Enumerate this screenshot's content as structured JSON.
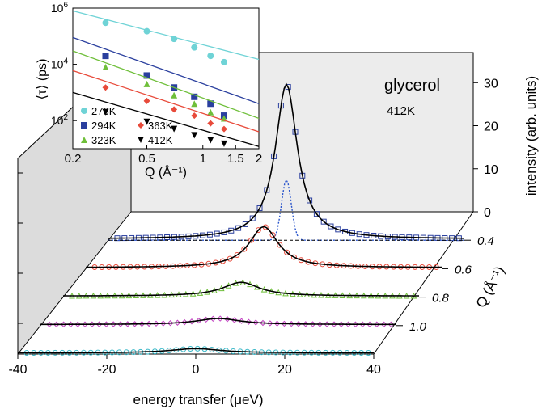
{
  "chart_data": [
    {
      "type": "line",
      "title": "glycerol",
      "subtitle": "412K",
      "xlabel": "energy transfer (μeV)",
      "ylabel": "intensity (arb. units)",
      "zlabel": "Q (Å⁻¹)",
      "xlim": [
        -40,
        40
      ],
      "ylim": [
        0,
        37
      ],
      "x_ticks": [
        "-40",
        "-20",
        "0",
        "20",
        "40"
      ],
      "y_ticks": [
        "0",
        "10",
        "20",
        "30"
      ],
      "z_ticks": [
        "0.4",
        "0.6",
        "0.8",
        "1.0"
      ],
      "series": [
        {
          "Q": 0.4,
          "color": "#2a3f9e",
          "marker": "square",
          "peak": 36,
          "width": 3.0,
          "resolution_peak": 14
        },
        {
          "Q": 0.6,
          "color": "#e84a3a",
          "marker": "circle",
          "peak": 9.5,
          "width": 4.0
        },
        {
          "Q": 0.8,
          "color": "#6fbf3a",
          "marker": "triangle",
          "peak": 3.2,
          "width": 5.0
        },
        {
          "Q": 1.0,
          "color": "#c243c2",
          "marker": "diamond",
          "peak": 1.4,
          "width": 6.0
        },
        {
          "Q": 1.2,
          "color": "#3ab8c8",
          "marker": "circle",
          "peak": 1.0,
          "width": 7.0
        }
      ]
    },
    {
      "type": "scatter",
      "xlabel": "Q (Å⁻¹)",
      "ylabel": "⟨τ⟩ (ps)",
      "xscale": "log",
      "yscale": "log",
      "xlim": [
        0.2,
        2
      ],
      "ylim": [
        10,
        1000000
      ],
      "x_ticks": [
        "0.2",
        "0.5",
        "1",
        "1.5",
        "2"
      ],
      "legend_position": "bottom-left",
      "series": [
        {
          "name": "273K",
          "color": "#6fd3d6",
          "marker": "circle",
          "x": [
            0.3,
            0.5,
            0.7,
            0.9,
            1.1,
            1.3
          ],
          "y": [
            300000,
            150000,
            80000,
            40000,
            20000,
            12000
          ],
          "fit": [
            [
              0.2,
              800000
            ],
            [
              2,
              15000
            ]
          ]
        },
        {
          "name": "294K",
          "color": "#2a3f9e",
          "marker": "square",
          "x": [
            0.3,
            0.5,
            0.7,
            0.9,
            1.1,
            1.3
          ],
          "y": [
            20000,
            4000,
            1500,
            700,
            400,
            150
          ],
          "fit": [
            [
              0.2,
              90000
            ],
            [
              2,
              400
            ]
          ]
        },
        {
          "name": "323K",
          "color": "#6fbf3a",
          "marker": "triangle",
          "x": [
            0.3,
            0.5,
            0.7,
            0.9,
            1.1,
            1.3
          ],
          "y": [
            8000,
            2000,
            800,
            400,
            200,
            120
          ],
          "fit": [
            [
              0.2,
              30000
            ],
            [
              2,
              120
            ]
          ]
        },
        {
          "name": "363K",
          "color": "#e84a3a",
          "marker": "diamond",
          "x": [
            0.3,
            0.5,
            0.7,
            0.9,
            1.1,
            1.3
          ],
          "y": [
            1500,
            500,
            250,
            150,
            80,
            50
          ],
          "fit": [
            [
              0.2,
              6000
            ],
            [
              2,
              40
            ]
          ]
        },
        {
          "name": "412K",
          "color": "#000000",
          "marker": "triangle-down",
          "x": [
            0.3,
            0.5,
            0.7,
            0.9,
            1.1,
            1.3
          ],
          "y": [
            200,
            90,
            50,
            30,
            20,
            15
          ],
          "fit": [
            [
              0.2,
              1000
            ],
            [
              2,
              12
            ]
          ]
        }
      ]
    }
  ]
}
